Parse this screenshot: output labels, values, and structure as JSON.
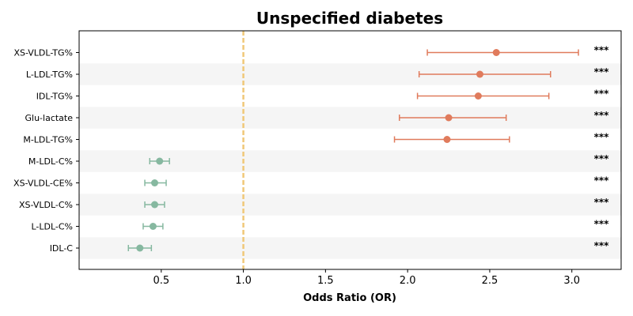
{
  "chart_data": {
    "type": "forest",
    "title": "Unspecified diabetes",
    "xlabel": "Odds Ratio (OR)",
    "xlim": [
      0.0,
      3.3
    ],
    "x_ticks": [
      "0.5",
      "1.0",
      "1.5",
      "2.0",
      "2.5",
      "3.0"
    ],
    "x_tick_values": [
      0.5,
      1.0,
      1.5,
      2.0,
      2.5,
      3.0
    ],
    "reference_line": 1.0,
    "colors": {
      "risk": "#e07b5c",
      "protective": "#86b8a0",
      "reference": "#f0c878",
      "band": "#f5f5f5"
    },
    "rows": [
      {
        "label": "XS-VLDL-TG%",
        "or": 2.54,
        "lo": 2.12,
        "hi": 3.04,
        "sig": "***",
        "group": "risk"
      },
      {
        "label": "L-LDL-TG%",
        "or": 2.44,
        "lo": 2.07,
        "hi": 2.87,
        "sig": "***",
        "group": "risk"
      },
      {
        "label": "IDL-TG%",
        "or": 2.43,
        "lo": 2.06,
        "hi": 2.86,
        "sig": "***",
        "group": "risk"
      },
      {
        "label": "Glu-lactate",
        "or": 2.25,
        "lo": 1.95,
        "hi": 2.6,
        "sig": "***",
        "group": "risk"
      },
      {
        "label": "M-LDL-TG%",
        "or": 2.24,
        "lo": 1.92,
        "hi": 2.62,
        "sig": "***",
        "group": "risk"
      },
      {
        "label": "M-LDL-C%",
        "or": 0.49,
        "lo": 0.43,
        "hi": 0.55,
        "sig": "***",
        "group": "protective"
      },
      {
        "label": "XS-VLDL-CE%",
        "or": 0.46,
        "lo": 0.4,
        "hi": 0.53,
        "sig": "***",
        "group": "protective"
      },
      {
        "label": "XS-VLDL-C%",
        "or": 0.46,
        "lo": 0.4,
        "hi": 0.52,
        "sig": "***",
        "group": "protective"
      },
      {
        "label": "L-LDL-C%",
        "or": 0.45,
        "lo": 0.39,
        "hi": 0.51,
        "sig": "***",
        "group": "protective"
      },
      {
        "label": "IDL-C",
        "or": 0.37,
        "lo": 0.3,
        "hi": 0.44,
        "sig": "***",
        "group": "protective"
      }
    ]
  }
}
